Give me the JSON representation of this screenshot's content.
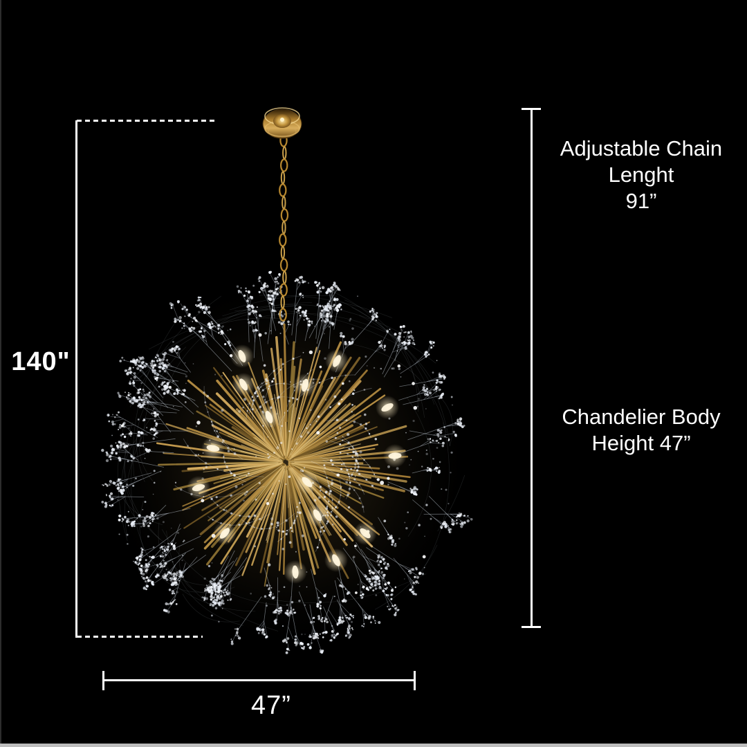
{
  "page": {
    "background": "#000000",
    "bottom_bar_color": "#bdbdbd"
  },
  "product": {
    "kind": "dandelion-crystal-chandelier",
    "gold_color": "#b8863b",
    "crystal_color": "#e9eef6"
  },
  "dimensions": {
    "overall_height_label": "140\"",
    "chain": {
      "line1": "Adjustable Chain",
      "line2": "Lenght",
      "line3": "91”"
    },
    "body": {
      "line1": "Chandelier Body",
      "line2": "Height 47”"
    },
    "width_label": "47”"
  }
}
